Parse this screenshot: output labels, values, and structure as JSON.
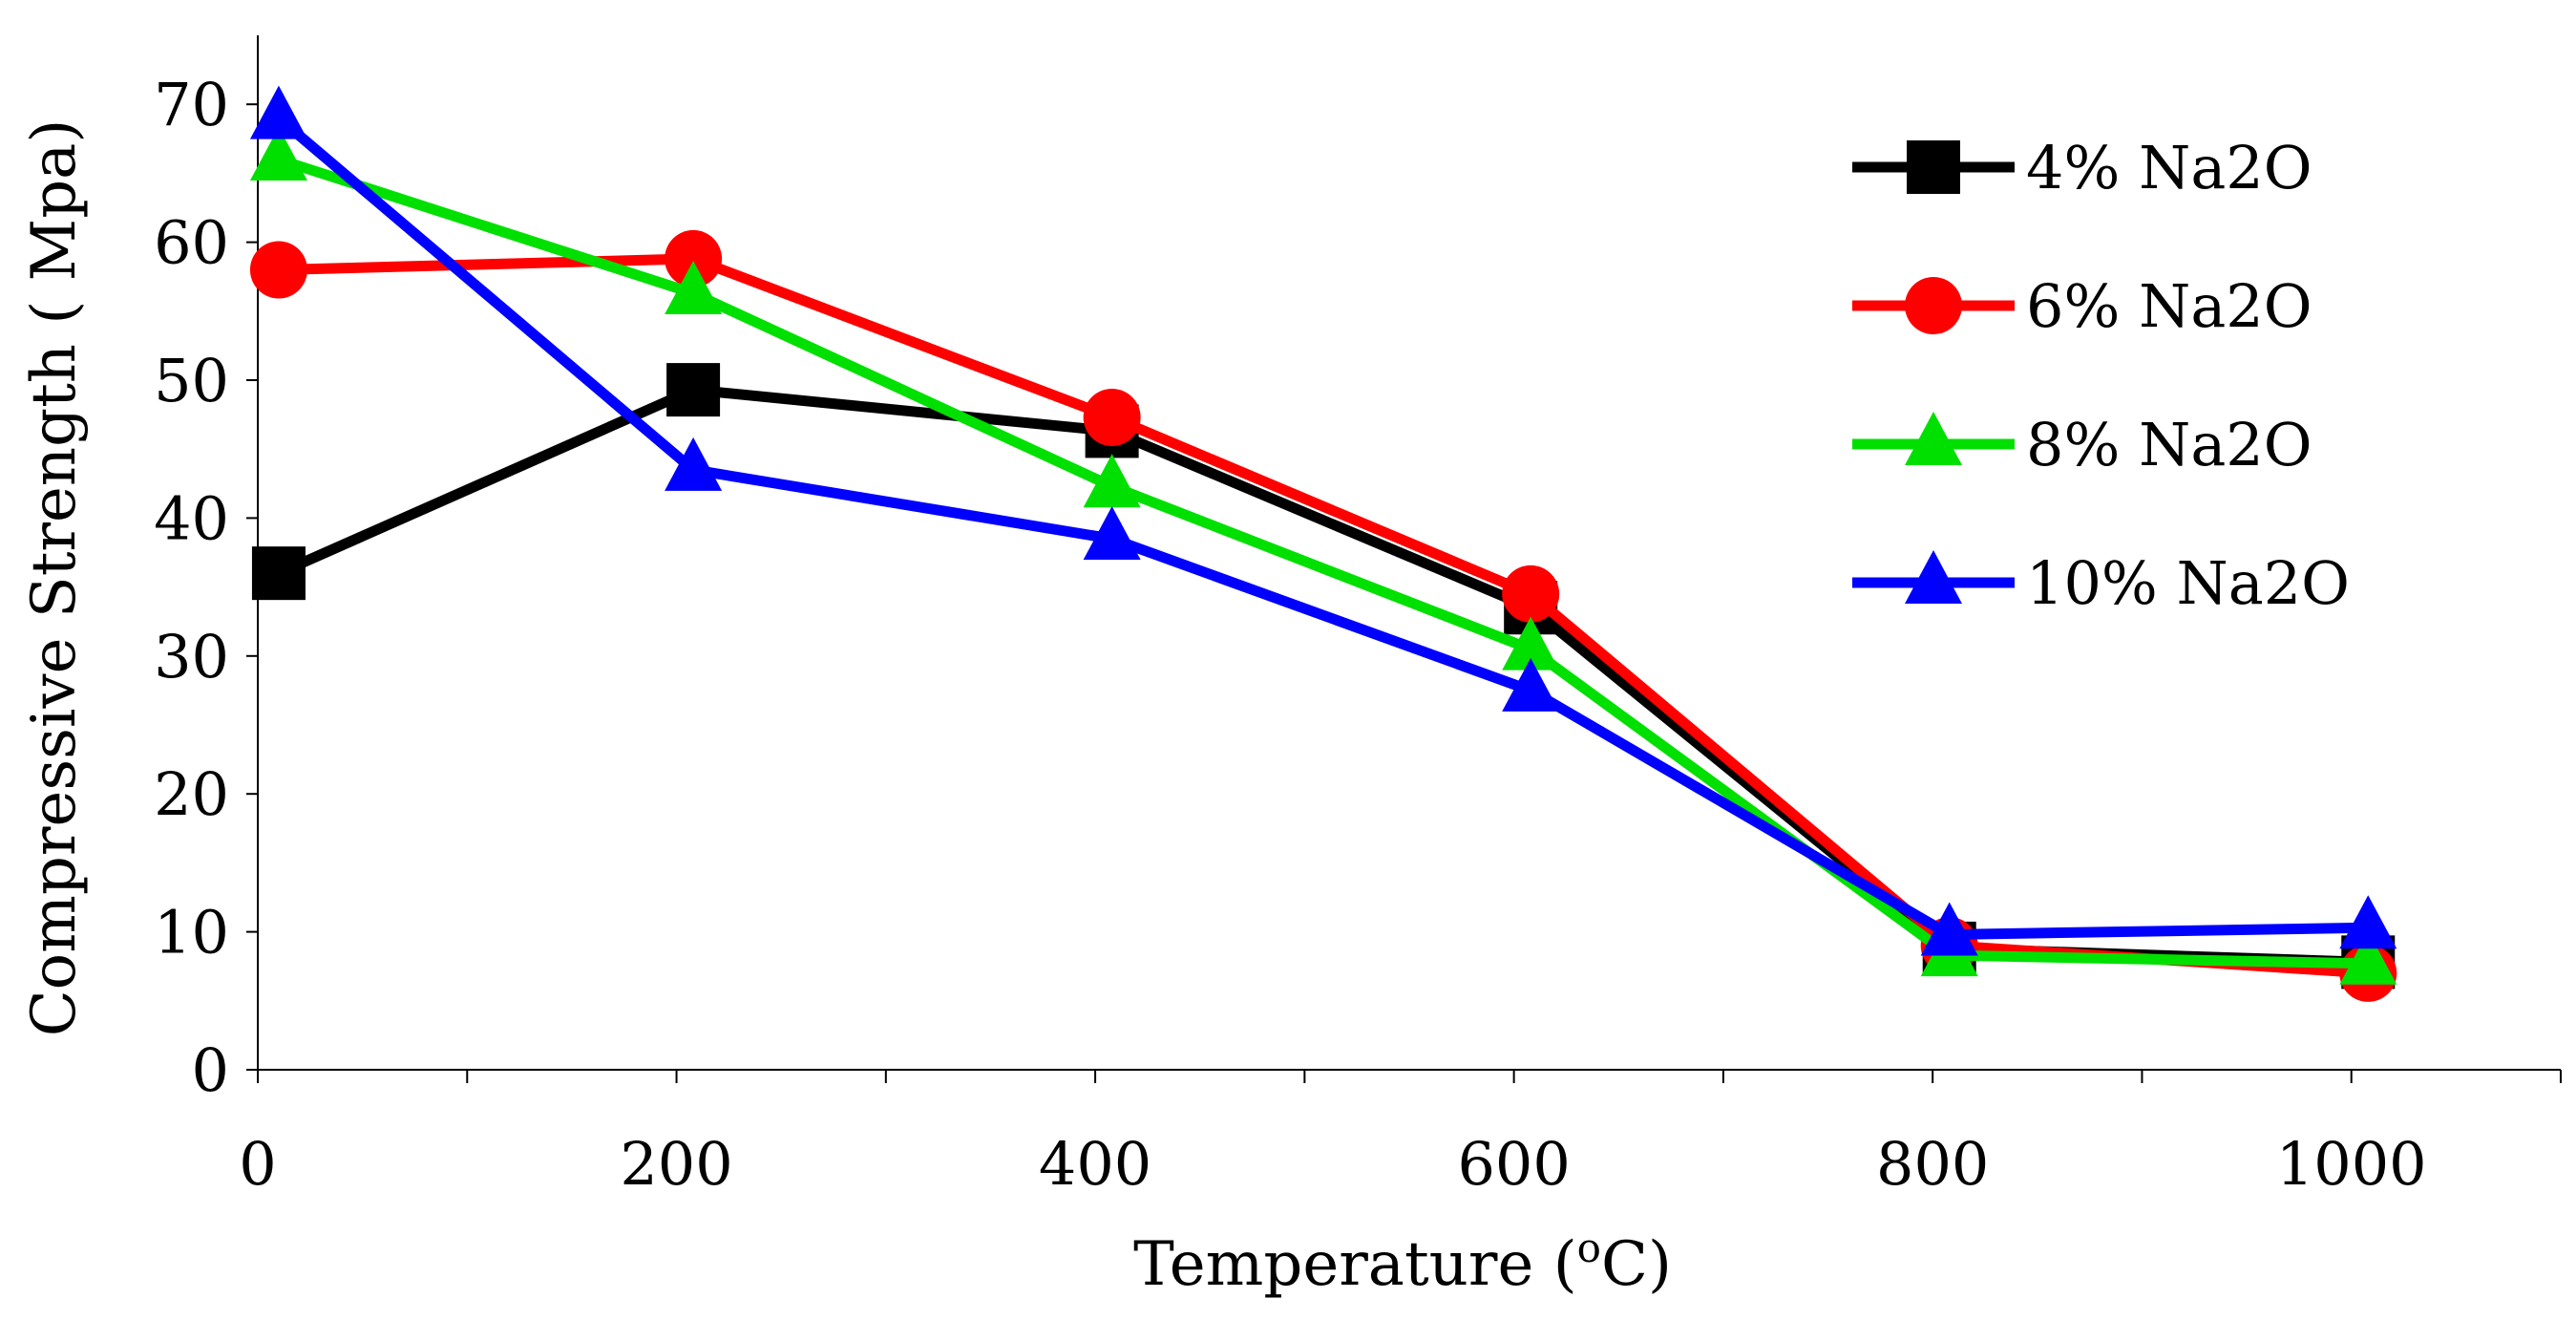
{
  "chart_data": {
    "type": "line",
    "title": "",
    "xlabel": "Temperature (",
    "xlabel_sup": "o",
    "xlabel_unit": "C)",
    "ylabel": "Compressive Strength ( Mpa)",
    "xlim": [
      0,
      1100
    ],
    "ylim": [
      0,
      75
    ],
    "x_ticks": [
      0,
      200,
      400,
      600,
      800,
      1000
    ],
    "x_minor_ticks": [
      100,
      300,
      500,
      700,
      900,
      1100
    ],
    "y_ticks": [
      0,
      10,
      20,
      30,
      40,
      50,
      60,
      70
    ],
    "x": [
      0,
      200,
      400,
      600,
      800,
      1000
    ],
    "legend_position": "top-right",
    "series": [
      {
        "name": "4% Na2O",
        "color": "#000000",
        "marker": "square",
        "values": [
          36,
          49.3,
          46.3,
          33.5,
          8.8,
          7.8
        ]
      },
      {
        "name": "6% Na2O",
        "color": "#ff0000",
        "marker": "circle",
        "values": [
          58,
          58.8,
          47.3,
          34.5,
          9.0,
          7.0
        ]
      },
      {
        "name": "8% Na2O",
        "color": "#00e000",
        "marker": "triangle",
        "values": [
          66,
          56.3,
          42.3,
          30.5,
          8.3,
          7.7
        ]
      },
      {
        "name": "10% Na2O",
        "color": "#0000ff",
        "marker": "triangle",
        "values": [
          69,
          43.5,
          38.5,
          27.5,
          9.8,
          10.3
        ]
      }
    ]
  }
}
